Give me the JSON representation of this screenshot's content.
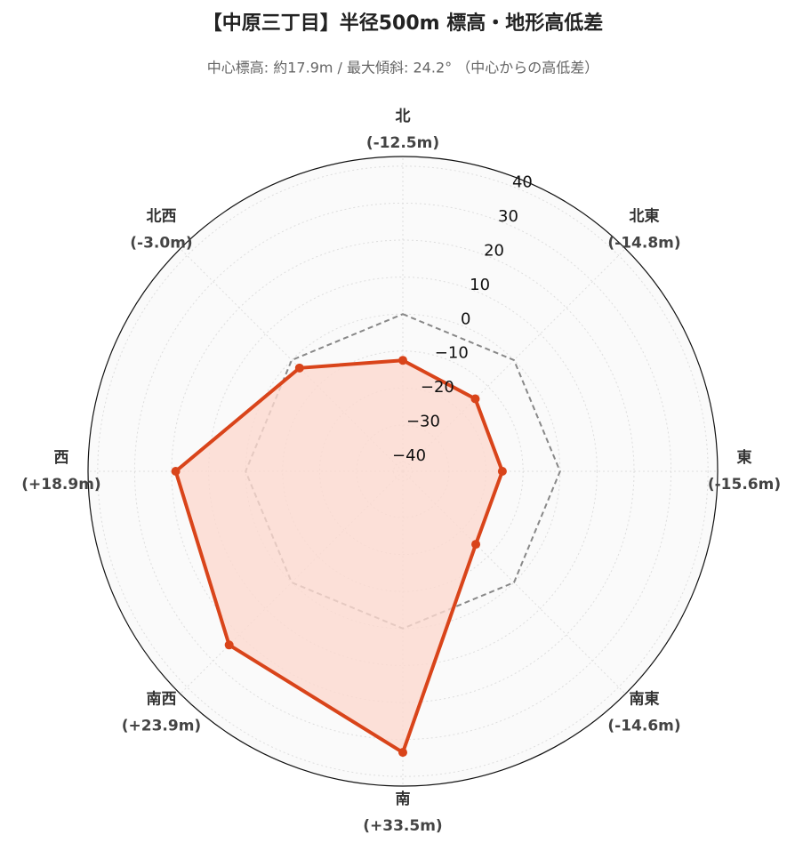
{
  "chart_data": {
    "type": "radar",
    "title": "【中原三丁目】半径500m 標高・地形高低差",
    "subtitle": "中心標高: 約17.9m / 最大傾斜: 24.2° （中心からの高低差）",
    "categories": [
      "北",
      "北東",
      "東",
      "南東",
      "南",
      "南西",
      "西",
      "北西"
    ],
    "values": [
      -12.5,
      -14.8,
      -15.6,
      -14.6,
      33.5,
      23.9,
      18.9,
      -3.0
    ],
    "value_labels": [
      "(-12.5m)",
      "(-14.8m)",
      "(-15.6m)",
      "(-14.6m)",
      "(+33.5m)",
      "(+23.9m)",
      "(+18.9m)",
      "(-3.0m)"
    ],
    "color": "#d9441a",
    "fill_color": "#fcd9cf",
    "reference_value": 0,
    "ylim": [
      -42.5,
      42.6
    ],
    "yticks": [
      {
        "value": -40,
        "label": "−40"
      },
      {
        "value": -30,
        "label": "−30"
      },
      {
        "value": -20,
        "label": "−20"
      },
      {
        "value": -10,
        "label": "−10"
      },
      0,
      10,
      20,
      30,
      40
    ],
    "grid": true
  }
}
